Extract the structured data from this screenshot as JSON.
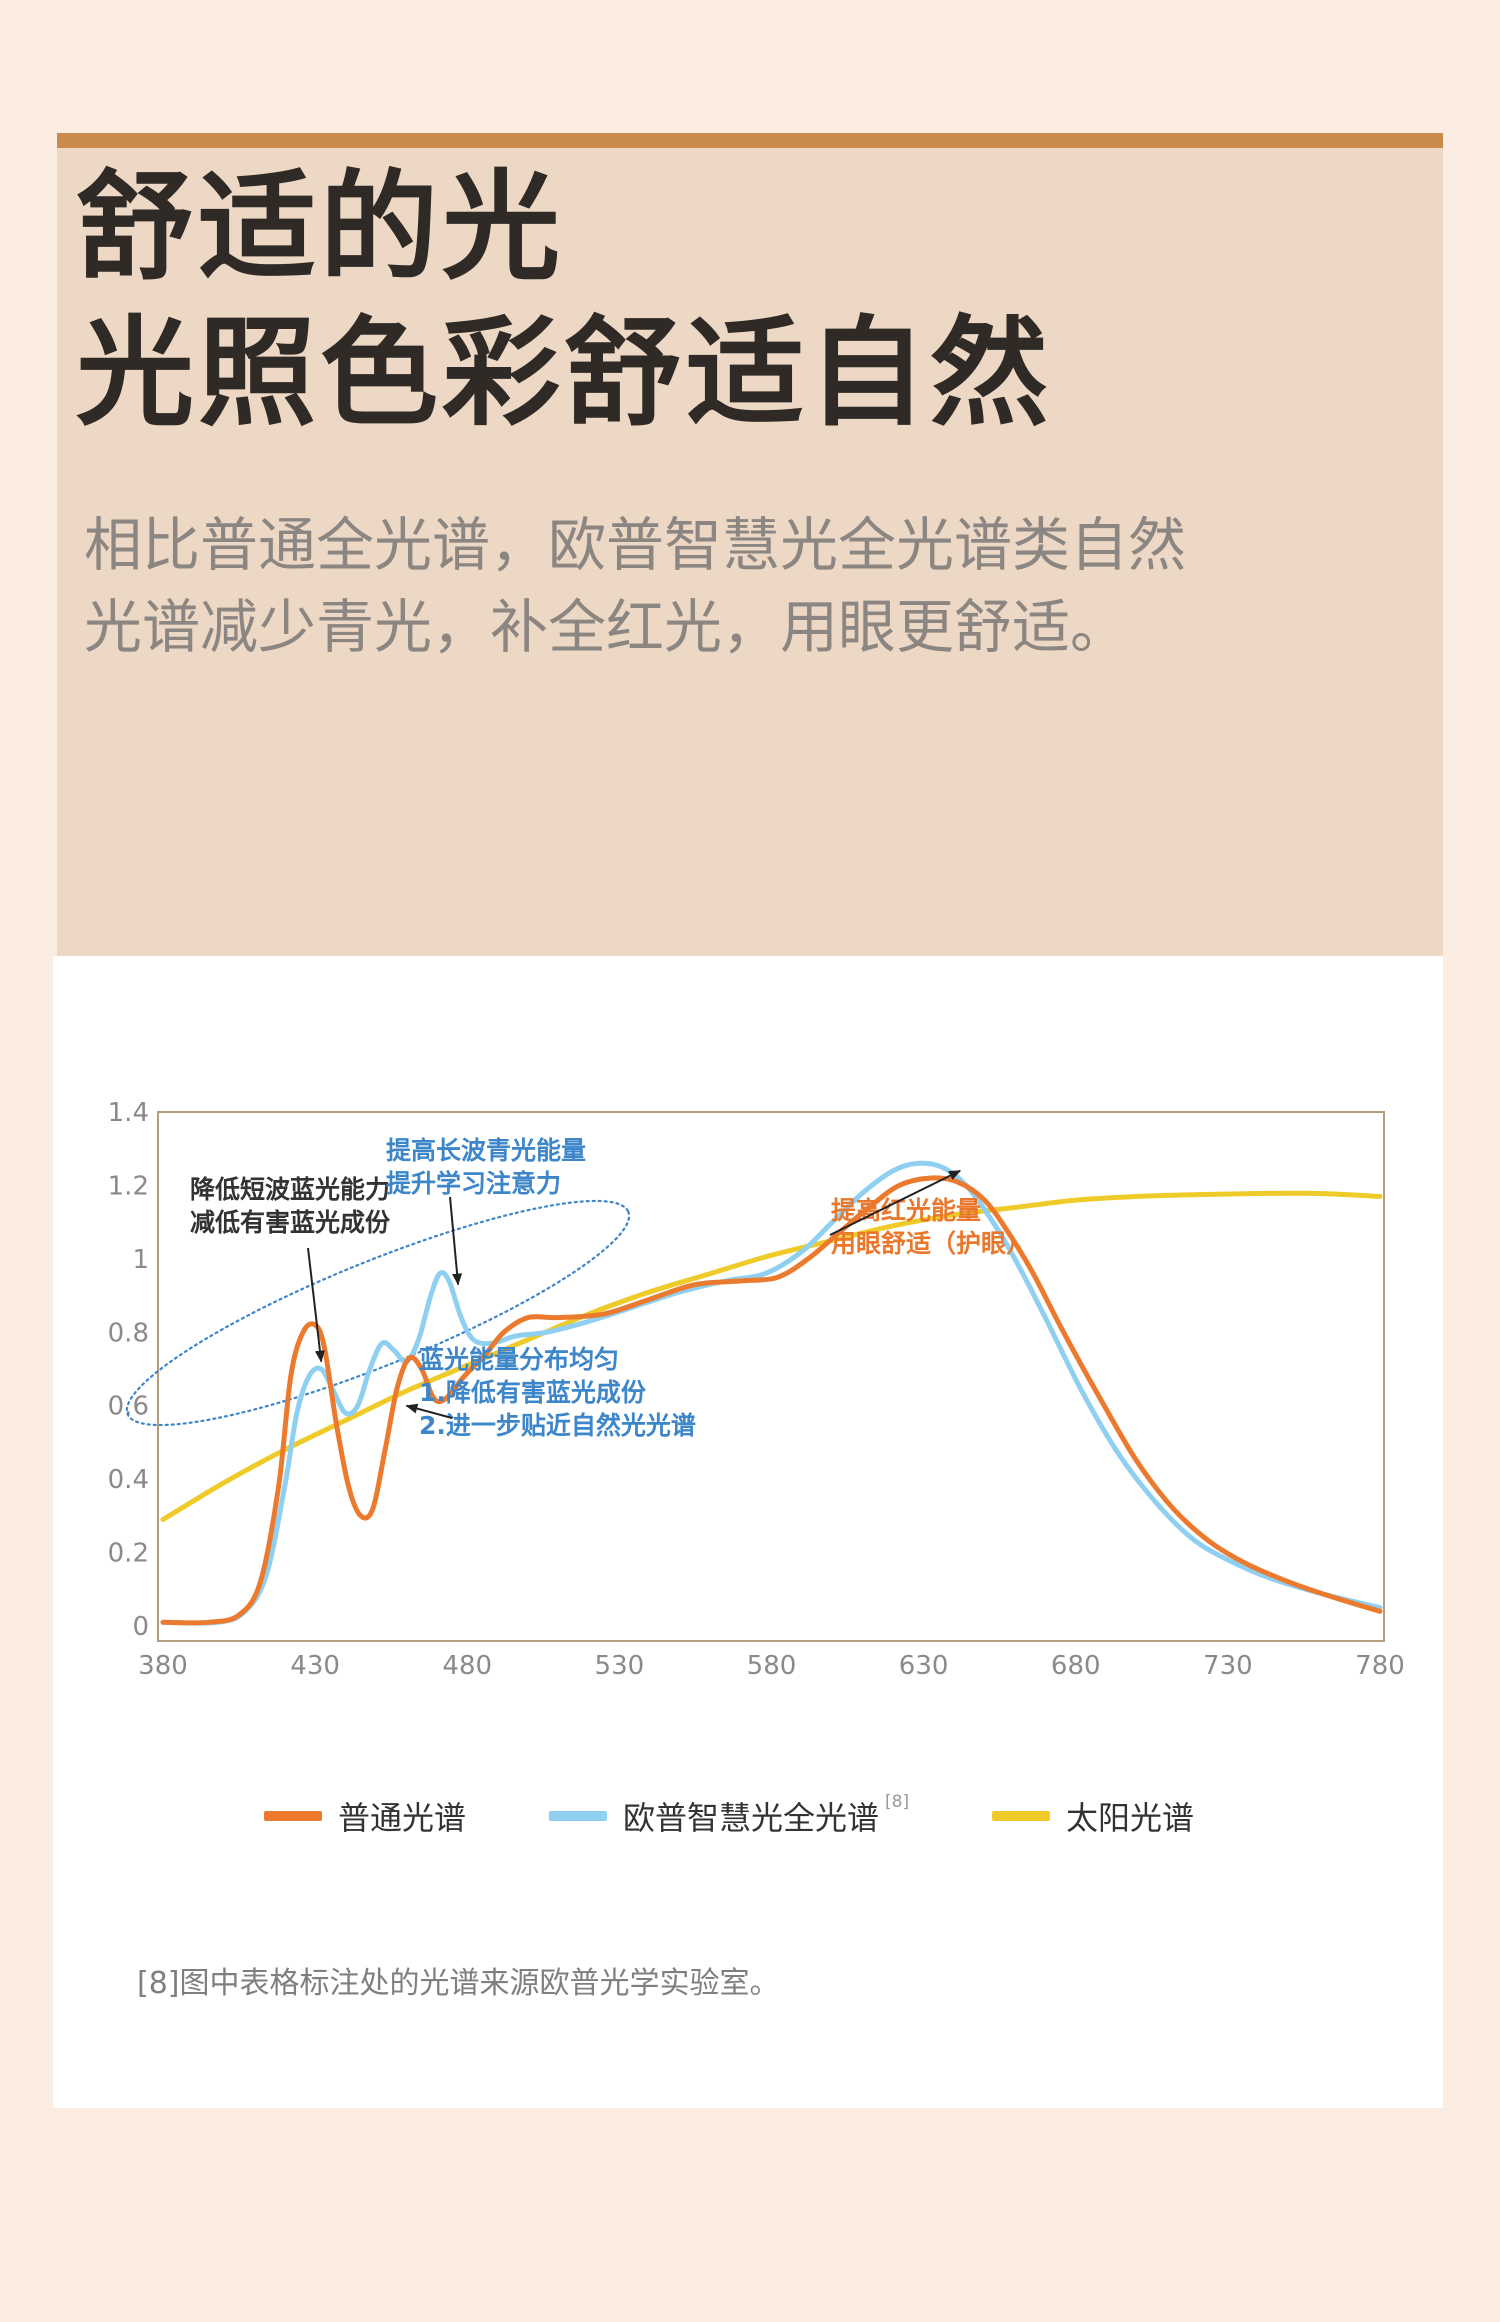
{
  "hero": {
    "title_line1": "舒适的光",
    "title_line2": "光照色彩舒适自然",
    "desc_line1": "相比普通全光谱，欧普智慧光全光谱类自然",
    "desc_line2": "光谱减少青光，补全红光，用眼更舒适。"
  },
  "colors": {
    "accent_bar": "#c98a4b",
    "hero_bg": "#ecd8c4",
    "page_bg": "#fcede3",
    "series_ordinary": "#ec7a2e",
    "series_opple": "#8fd0f2",
    "series_sun": "#efcb2a",
    "annotation_blue": "#3d86c9",
    "annotation_orange": "#e9782c"
  },
  "chart_data": {
    "type": "line",
    "xlim": [
      380,
      780
    ],
    "ylim": [
      0,
      1.4
    ],
    "x_ticks": [
      "380",
      "430",
      "480",
      "530",
      "580",
      "630",
      "680",
      "730",
      "780"
    ],
    "y_ticks": [
      "0",
      "0.2",
      "0.4",
      "0.6",
      "0.8",
      "1",
      "1.2",
      "1.4"
    ],
    "grid": false,
    "legend_position": "bottom",
    "series": [
      {
        "name": "普通光谱",
        "color": "#ec7a2e",
        "points": [
          [
            380,
            0.01
          ],
          [
            395,
            0.01
          ],
          [
            405,
            0.03
          ],
          [
            412,
            0.12
          ],
          [
            418,
            0.38
          ],
          [
            422,
            0.68
          ],
          [
            426,
            0.8
          ],
          [
            430,
            0.82
          ],
          [
            433,
            0.76
          ],
          [
            437,
            0.55
          ],
          [
            441,
            0.38
          ],
          [
            445,
            0.3
          ],
          [
            449,
            0.32
          ],
          [
            453,
            0.48
          ],
          [
            457,
            0.65
          ],
          [
            461,
            0.73
          ],
          [
            465,
            0.7
          ],
          [
            469,
            0.62
          ],
          [
            473,
            0.62
          ],
          [
            479,
            0.68
          ],
          [
            486,
            0.74
          ],
          [
            492,
            0.8
          ],
          [
            500,
            0.84
          ],
          [
            510,
            0.84
          ],
          [
            525,
            0.85
          ],
          [
            540,
            0.89
          ],
          [
            555,
            0.93
          ],
          [
            570,
            0.94
          ],
          [
            582,
            0.95
          ],
          [
            592,
            1.0
          ],
          [
            602,
            1.07
          ],
          [
            612,
            1.14
          ],
          [
            622,
            1.2
          ],
          [
            632,
            1.22
          ],
          [
            641,
            1.21
          ],
          [
            650,
            1.16
          ],
          [
            658,
            1.07
          ],
          [
            666,
            0.96
          ],
          [
            676,
            0.8
          ],
          [
            688,
            0.62
          ],
          [
            700,
            0.45
          ],
          [
            712,
            0.32
          ],
          [
            724,
            0.23
          ],
          [
            736,
            0.17
          ],
          [
            750,
            0.12
          ],
          [
            764,
            0.08
          ],
          [
            780,
            0.04
          ]
        ]
      },
      {
        "name": "欧普智慧光全光谱",
        "superscript": "[8]",
        "color": "#8fd0f2",
        "points": [
          [
            380,
            0.01
          ],
          [
            398,
            0.01
          ],
          [
            407,
            0.04
          ],
          [
            414,
            0.14
          ],
          [
            420,
            0.38
          ],
          [
            424,
            0.58
          ],
          [
            428,
            0.68
          ],
          [
            432,
            0.7
          ],
          [
            436,
            0.64
          ],
          [
            440,
            0.58
          ],
          [
            444,
            0.6
          ],
          [
            448,
            0.7
          ],
          [
            452,
            0.77
          ],
          [
            456,
            0.75
          ],
          [
            460,
            0.72
          ],
          [
            464,
            0.78
          ],
          [
            468,
            0.9
          ],
          [
            471,
            0.96
          ],
          [
            474,
            0.94
          ],
          [
            478,
            0.84
          ],
          [
            482,
            0.78
          ],
          [
            488,
            0.77
          ],
          [
            496,
            0.79
          ],
          [
            506,
            0.8
          ],
          [
            520,
            0.83
          ],
          [
            535,
            0.87
          ],
          [
            550,
            0.91
          ],
          [
            565,
            0.94
          ],
          [
            578,
            0.96
          ],
          [
            590,
            1.02
          ],
          [
            600,
            1.1
          ],
          [
            610,
            1.18
          ],
          [
            620,
            1.24
          ],
          [
            628,
            1.26
          ],
          [
            636,
            1.25
          ],
          [
            644,
            1.2
          ],
          [
            652,
            1.11
          ],
          [
            660,
            1.0
          ],
          [
            670,
            0.84
          ],
          [
            682,
            0.64
          ],
          [
            694,
            0.47
          ],
          [
            706,
            0.34
          ],
          [
            718,
            0.24
          ],
          [
            730,
            0.18
          ],
          [
            744,
            0.13
          ],
          [
            760,
            0.09
          ],
          [
            780,
            0.05
          ]
        ]
      },
      {
        "name": "太阳光谱",
        "color": "#efcb2a",
        "points": [
          [
            380,
            0.29
          ],
          [
            400,
            0.39
          ],
          [
            420,
            0.48
          ],
          [
            440,
            0.56
          ],
          [
            460,
            0.64
          ],
          [
            480,
            0.71
          ],
          [
            500,
            0.78
          ],
          [
            520,
            0.85
          ],
          [
            540,
            0.91
          ],
          [
            560,
            0.96
          ],
          [
            580,
            1.01
          ],
          [
            600,
            1.05
          ],
          [
            620,
            1.09
          ],
          [
            640,
            1.12
          ],
          [
            660,
            1.14
          ],
          [
            680,
            1.16
          ],
          [
            700,
            1.17
          ],
          [
            720,
            1.175
          ],
          [
            740,
            1.178
          ],
          [
            760,
            1.178
          ],
          [
            780,
            1.17
          ]
        ]
      }
    ],
    "annotations": [
      {
        "line1": "降低短波蓝光能力",
        "line2": "减低有害蓝光成份",
        "color": "#333333",
        "target": [
          432,
          0.72
        ]
      },
      {
        "line1": "提高长波青光能量",
        "line2": "提升学习注意力",
        "color": "#3d86c9",
        "target": [
          477,
          0.93
        ]
      },
      {
        "line1": "蓝光能量分布均匀",
        "line2": "1.降低有害蓝光成份",
        "line3": "2.进一步贴近自然光光谱",
        "color": "#3d86c9",
        "target": [
          460,
          0.6
        ]
      },
      {
        "line1": "提高红光能量",
        "line2": "用眼舒适（护眼）",
        "color": "#e9782c",
        "target": [
          642,
          1.24
        ]
      }
    ]
  },
  "footnote": "[8]图中表格标注处的光谱来源欧普光学实验室。"
}
